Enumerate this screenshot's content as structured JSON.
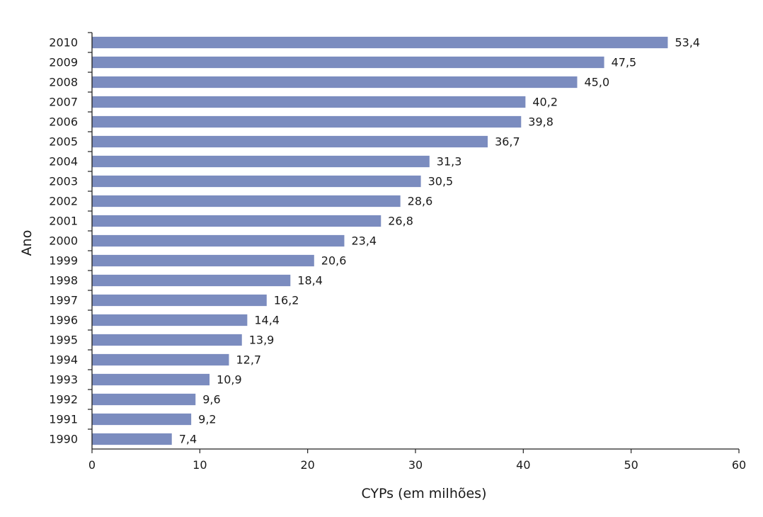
{
  "chart_data": {
    "type": "bar",
    "orientation": "horizontal",
    "title": "",
    "xlabel": "CYPs (em milhões)",
    "ylabel": "Ano",
    "xlim": [
      0,
      60
    ],
    "xticks": [
      "0",
      "10",
      "20",
      "30",
      "40",
      "50",
      "60"
    ],
    "grid": false,
    "bar_color": "#7b8cbf",
    "categories": [
      "2010",
      "2009",
      "2008",
      "2007",
      "2006",
      "2005",
      "2004",
      "2003",
      "2002",
      "2001",
      "2000",
      "1999",
      "1998",
      "1997",
      "1996",
      "1995",
      "1994",
      "1993",
      "1992",
      "1991",
      "1990"
    ],
    "values": [
      53.4,
      47.5,
      45.0,
      40.2,
      39.8,
      36.7,
      31.3,
      30.5,
      28.6,
      26.8,
      23.4,
      20.6,
      18.4,
      16.2,
      14.4,
      13.9,
      12.7,
      10.9,
      9.6,
      9.2,
      7.4
    ],
    "value_labels": [
      "53,4",
      "47,5",
      "45,0",
      "40,2",
      "39,8",
      "36,7",
      "31,3",
      "30,5",
      "28,6",
      "26,8",
      "23,4",
      "20,6",
      "18,4",
      "16,2",
      "14,4",
      "13,9",
      "12,7",
      "10,9",
      "9,6",
      "9,2",
      "7,4"
    ]
  }
}
